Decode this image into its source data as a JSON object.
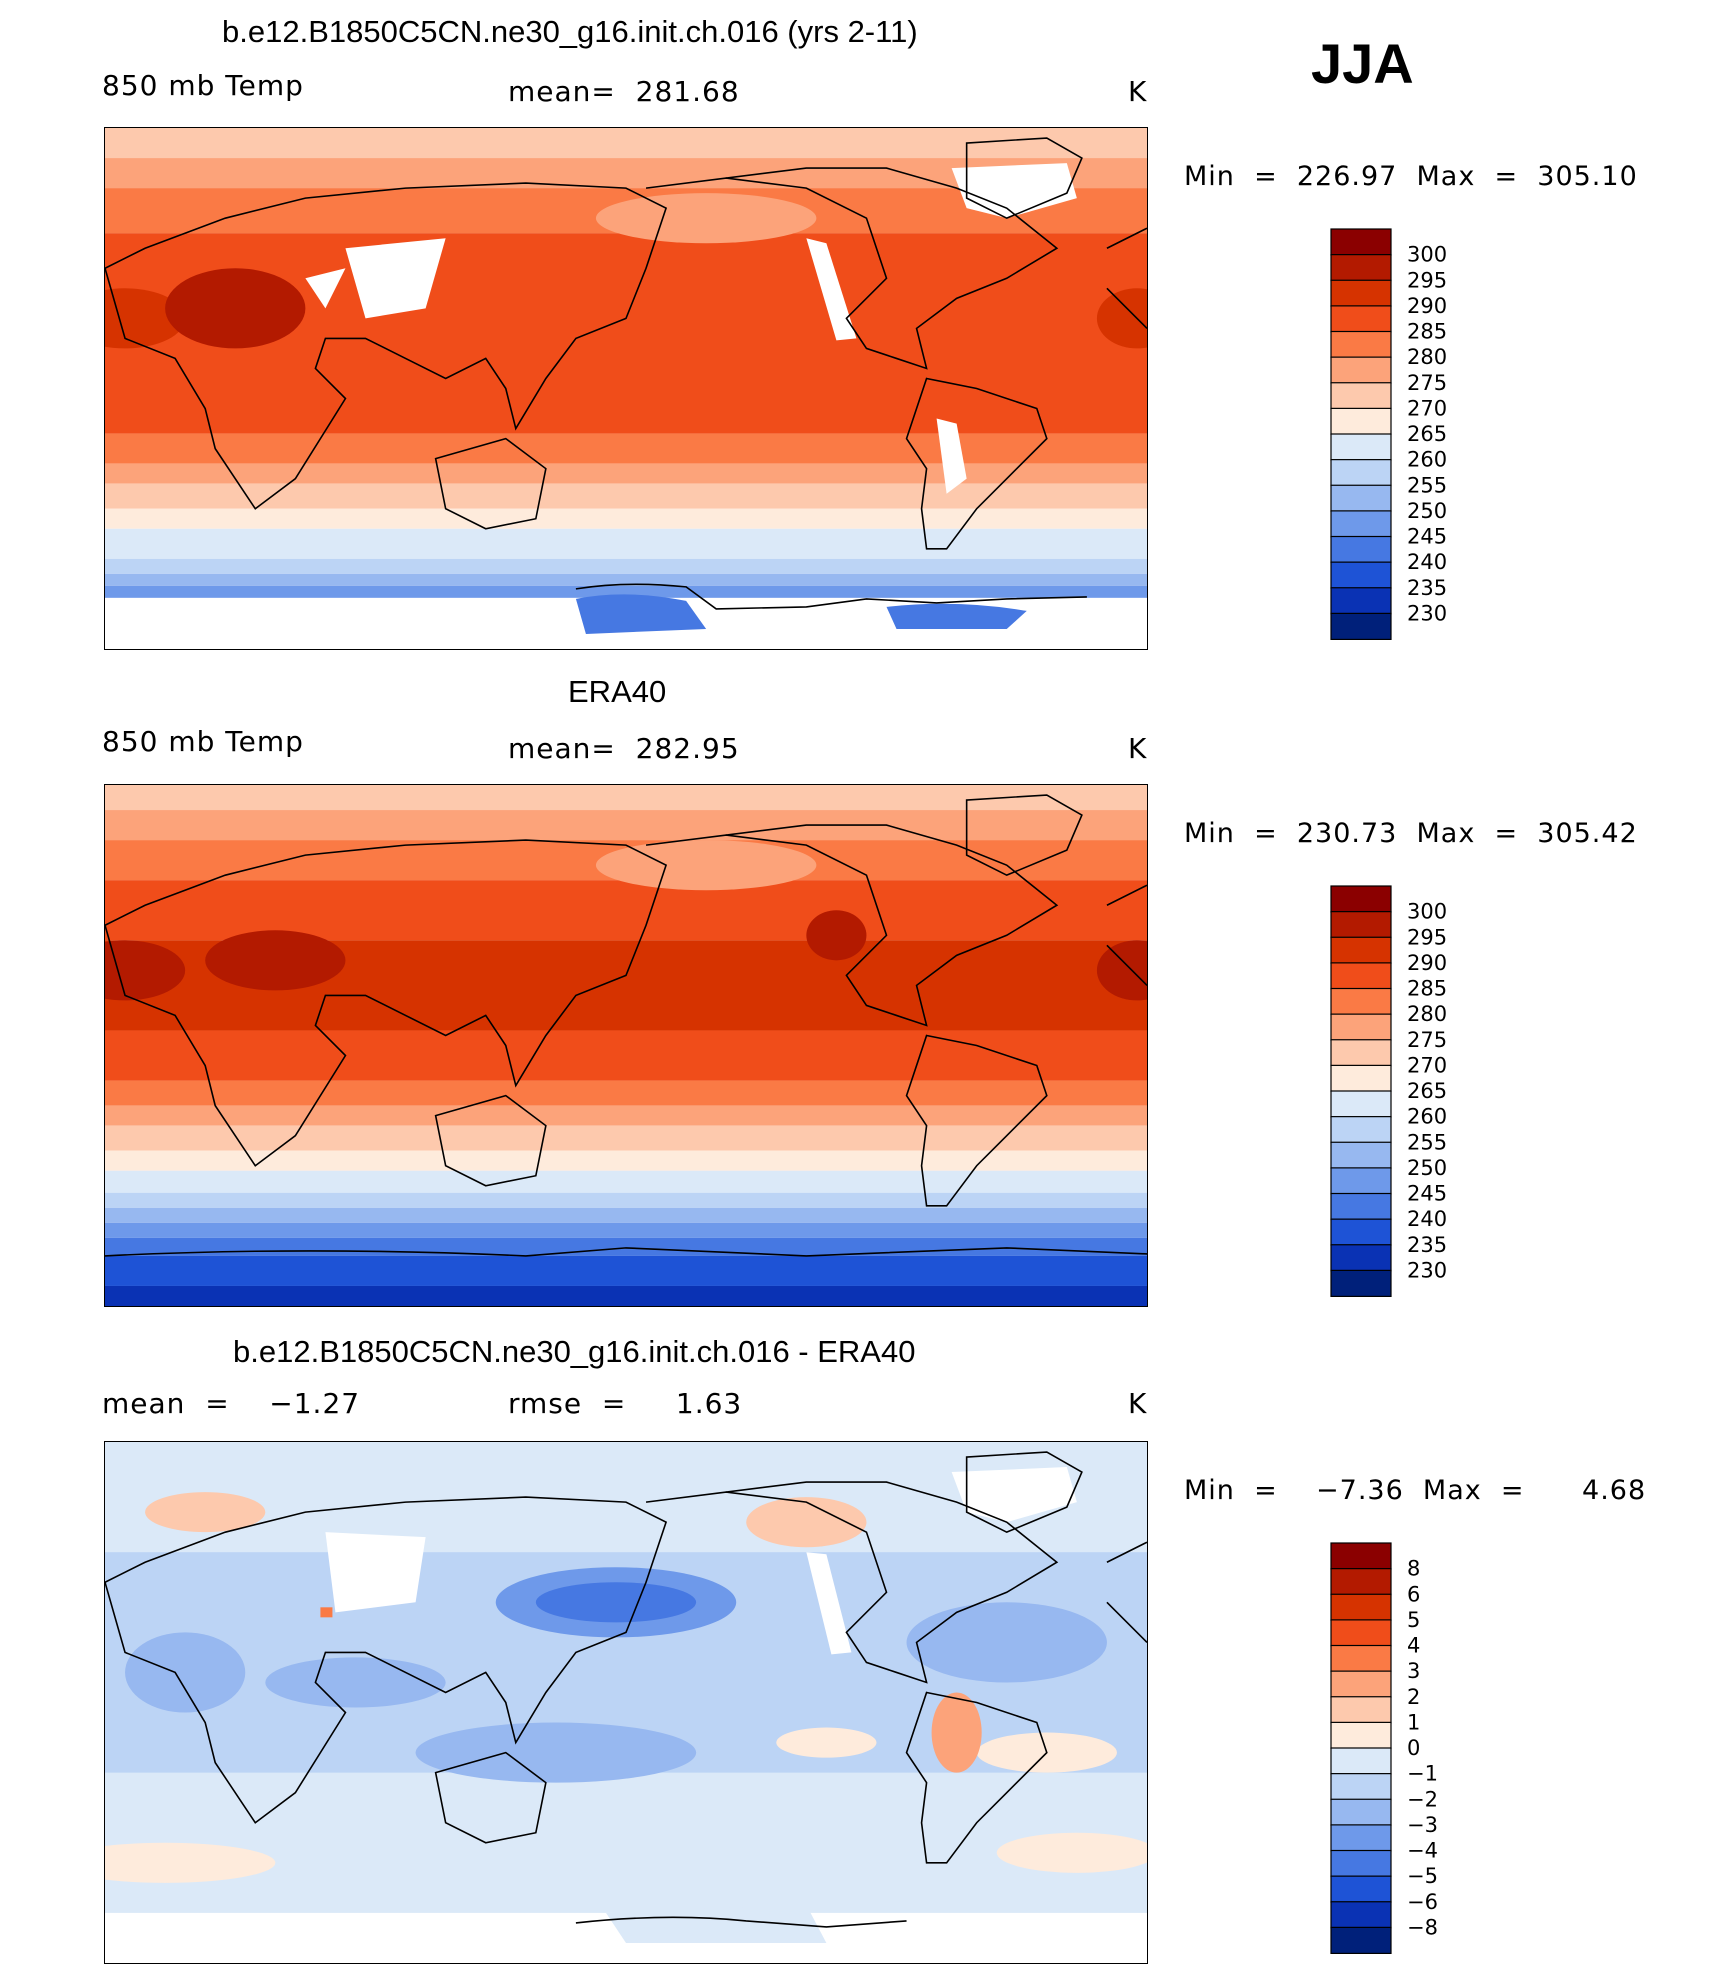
{
  "season": "JJA",
  "panels": [
    {
      "title": "b.e12.B1850C5CN.ne30_g16.init.ch.016 (yrs 2-11)",
      "left": "850 mb Temp",
      "center": "mean=  281.68",
      "right": "K",
      "minmax": "Min  =  226.97  Max  =  305.10",
      "colorbar": {
        "levels": [
          "300",
          "295",
          "290",
          "285",
          "280",
          "275",
          "270",
          "265",
          "260",
          "255",
          "250",
          "245",
          "240",
          "235",
          "230"
        ]
      }
    },
    {
      "title": "ERA40",
      "left": "850 mb Temp",
      "center": "mean=  282.95",
      "right": "K",
      "minmax": "Min  =  230.73  Max  =  305.42",
      "colorbar": {
        "levels": [
          "300",
          "295",
          "290",
          "285",
          "280",
          "275",
          "270",
          "265",
          "260",
          "255",
          "250",
          "245",
          "240",
          "235",
          "230"
        ]
      }
    },
    {
      "title": "b.e12.B1850C5CN.ne30_g16.init.ch.016 - ERA40",
      "left": "mean  =    −1.27",
      "center": "rmse  =     1.63",
      "right": "K",
      "minmax": "Min  =    −7.36  Max  =      4.68",
      "colorbar": {
        "levels": [
          "8",
          "6",
          "5",
          "4",
          "3",
          "2",
          "1",
          "0",
          "−1",
          "−2",
          "−3",
          "−4",
          "−5",
          "−6",
          "−8"
        ]
      }
    }
  ],
  "colors": {
    "temp_scale": [
      "#8b0000",
      "#b31a00",
      "#d63300",
      "#f04d1a",
      "#fa7a45",
      "#fca37a",
      "#fdc9ad",
      "#feebdc",
      "#dbe9f8",
      "#bcd4f5",
      "#97b8f0",
      "#6e99ea",
      "#4678e2",
      "#1e53d6",
      "#0a32b4",
      "#00207a"
    ],
    "diff_scale": [
      "#8b0000",
      "#b31a00",
      "#d63300",
      "#f04d1a",
      "#fa7a45",
      "#fca37a",
      "#fdc9ad",
      "#feebdc",
      "#dbe9f8",
      "#bcd4f5",
      "#97b8f0",
      "#6e99ea",
      "#4678e2",
      "#1e53d6",
      "#0a32b4",
      "#00207a"
    ]
  },
  "chart_data": [
    {
      "type": "heatmap",
      "title": "b.e12.B1850C5CN.ne30_g16.init.ch.016 (yrs 2-11)",
      "variable": "850 mb Temp",
      "units": "K",
      "mean": 281.68,
      "min": 226.97,
      "max": 305.1,
      "contour_levels": [
        230,
        235,
        240,
        245,
        250,
        255,
        260,
        265,
        270,
        275,
        280,
        285,
        290,
        295,
        300
      ]
    },
    {
      "type": "heatmap",
      "title": "ERA40",
      "variable": "850 mb Temp",
      "units": "K",
      "mean": 282.95,
      "min": 230.73,
      "max": 305.42,
      "contour_levels": [
        230,
        235,
        240,
        245,
        250,
        255,
        260,
        265,
        270,
        275,
        280,
        285,
        290,
        295,
        300
      ]
    },
    {
      "type": "heatmap",
      "title": "b.e12.B1850C5CN.ne30_g16.init.ch.016 - ERA40",
      "units": "K",
      "mean": -1.27,
      "rmse": 1.63,
      "min": -7.36,
      "max": 4.68,
      "contour_levels": [
        -8,
        -6,
        -5,
        -4,
        -3,
        -2,
        -1,
        0,
        1,
        2,
        3,
        4,
        5,
        6,
        8
      ]
    }
  ]
}
